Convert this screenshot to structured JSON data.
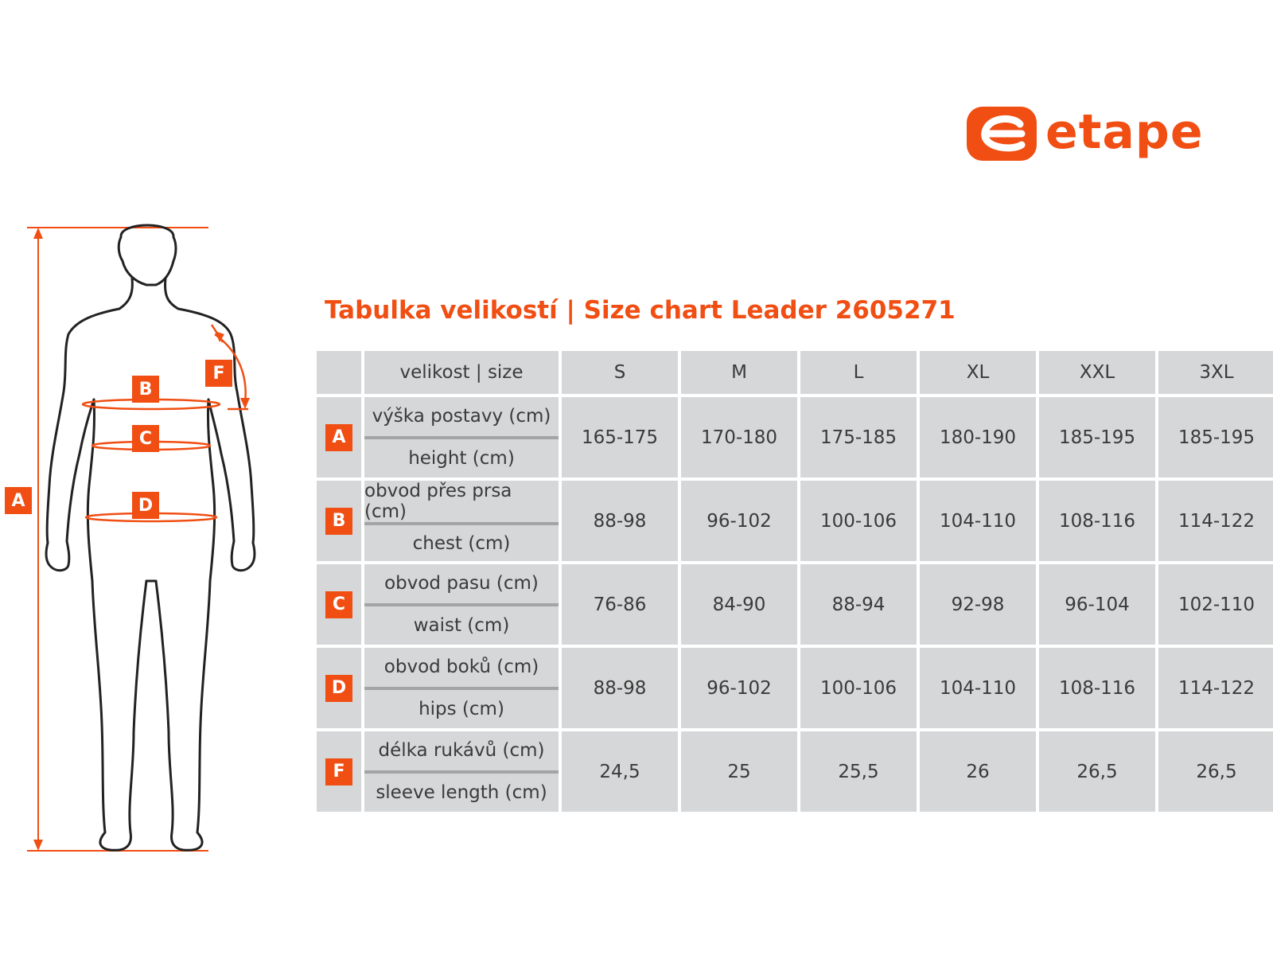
{
  "brand": {
    "name": "etape",
    "color": "#f04e13"
  },
  "title": "Tabulka velikostí | Size chart Leader 2605271",
  "table": {
    "header_label": "velikost | size",
    "sizes": [
      "S",
      "M",
      "L",
      "XL",
      "XXL",
      "3XL"
    ],
    "rows": [
      {
        "letter": "A",
        "label_cz": "výška postavy (cm)",
        "label_en": "height (cm)",
        "values": [
          "165-175",
          "170-180",
          "175-185",
          "180-190",
          "185-195",
          "185-195"
        ]
      },
      {
        "letter": "B",
        "label_cz": "obvod přes prsa (cm)",
        "label_en": "chest (cm)",
        "values": [
          "88-98",
          "96-102",
          "100-106",
          "104-110",
          "108-116",
          "114-122"
        ]
      },
      {
        "letter": "C",
        "label_cz": "obvod pasu (cm)",
        "label_en": "waist (cm)",
        "values": [
          "76-86",
          "84-90",
          "88-94",
          "92-98",
          "96-104",
          "102-110"
        ]
      },
      {
        "letter": "D",
        "label_cz": "obvod boků (cm)",
        "label_en": "hips (cm)",
        "values": [
          "88-98",
          "96-102",
          "100-106",
          "104-110",
          "108-116",
          "114-122"
        ]
      },
      {
        "letter": "F",
        "label_cz": "délka rukávů (cm)",
        "label_en": "sleeve length (cm)",
        "values": [
          "24,5",
          "25",
          "25,5",
          "26",
          "26,5",
          "26,5"
        ]
      }
    ]
  },
  "figure_markers": {
    "a": "A",
    "b": "B",
    "c": "C",
    "d": "D",
    "f": "F"
  },
  "colors": {
    "accent": "#f04e13",
    "cell": "#d6d7d8",
    "divider": "#a3a4a6",
    "text": "#3a3a3a"
  }
}
